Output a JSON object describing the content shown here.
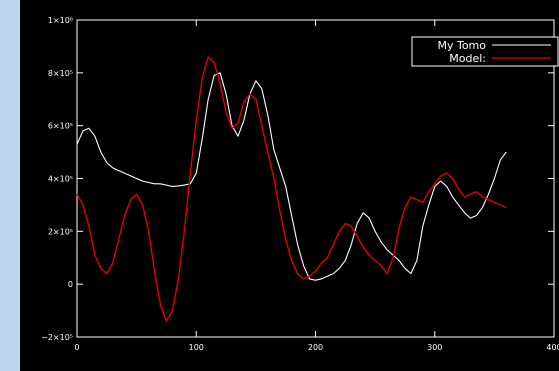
{
  "chart_data": {
    "type": "line",
    "title": "",
    "xlabel": "",
    "ylabel": "",
    "xlim": [
      0,
      400
    ],
    "ylim": [
      -200000,
      1000000
    ],
    "xticks": [
      0,
      100,
      200,
      300,
      400
    ],
    "xtick_labels": [
      "0",
      "100",
      "200",
      "300",
      "400"
    ],
    "yticks": [
      -200000,
      0,
      200000,
      400000,
      600000,
      800000,
      1000000
    ],
    "ytick_labels": [
      "−2×10⁵",
      "0",
      "2×10⁵",
      "4×10⁵",
      "6×10⁵",
      "8×10⁵",
      "1×10⁶"
    ],
    "legend_position": "top-right",
    "series": [
      {
        "name": "My Tomo",
        "color": "#ffffff",
        "x": [
          0,
          5,
          10,
          15,
          20,
          25,
          30,
          35,
          40,
          45,
          50,
          55,
          60,
          65,
          70,
          75,
          80,
          85,
          90,
          95,
          100,
          105,
          110,
          115,
          120,
          125,
          130,
          135,
          140,
          145,
          150,
          155,
          160,
          165,
          170,
          175,
          180,
          185,
          190,
          195,
          200,
          205,
          210,
          215,
          220,
          225,
          230,
          235,
          240,
          245,
          250,
          255,
          260,
          265,
          270,
          275,
          280,
          285,
          290,
          295,
          300,
          305,
          310,
          315,
          320,
          325,
          330,
          335,
          340,
          345,
          350,
          355,
          360
        ],
        "values": [
          530000,
          580000,
          590000,
          560000,
          500000,
          460000,
          440000,
          430000,
          420000,
          410000,
          400000,
          390000,
          385000,
          380000,
          380000,
          375000,
          370000,
          372000,
          375000,
          380000,
          420000,
          550000,
          700000,
          790000,
          800000,
          720000,
          600000,
          560000,
          620000,
          720000,
          770000,
          740000,
          640000,
          510000,
          440000,
          370000,
          260000,
          150000,
          70000,
          20000,
          15000,
          20000,
          30000,
          40000,
          60000,
          90000,
          150000,
          230000,
          270000,
          250000,
          200000,
          160000,
          130000,
          110000,
          90000,
          60000,
          40000,
          90000,
          220000,
          300000,
          370000,
          390000,
          370000,
          330000,
          300000,
          270000,
          250000,
          260000,
          290000,
          340000,
          400000,
          470000,
          500000
        ]
      },
      {
        "name": "Model:",
        "color": "#e00000",
        "x": [
          0,
          5,
          10,
          15,
          20,
          25,
          30,
          35,
          40,
          45,
          50,
          55,
          60,
          65,
          70,
          75,
          80,
          85,
          90,
          95,
          100,
          105,
          110,
          115,
          120,
          125,
          130,
          135,
          140,
          145,
          150,
          155,
          160,
          165,
          170,
          175,
          180,
          185,
          190,
          195,
          200,
          205,
          210,
          215,
          220,
          225,
          230,
          235,
          240,
          245,
          250,
          255,
          260,
          265,
          270,
          275,
          280,
          285,
          290,
          295,
          300,
          305,
          310,
          315,
          320,
          325,
          330,
          335,
          340,
          345,
          350,
          355,
          360
        ],
        "values": [
          340000,
          300000,
          220000,
          110000,
          60000,
          40000,
          80000,
          170000,
          260000,
          320000,
          340000,
          300000,
          200000,
          50000,
          -80000,
          -140000,
          -100000,
          20000,
          200000,
          420000,
          620000,
          780000,
          860000,
          840000,
          760000,
          650000,
          590000,
          610000,
          690000,
          720000,
          700000,
          600000,
          500000,
          400000,
          280000,
          170000,
          90000,
          40000,
          20000,
          30000,
          50000,
          80000,
          100000,
          150000,
          200000,
          230000,
          220000,
          180000,
          140000,
          110000,
          90000,
          70000,
          40000,
          100000,
          210000,
          290000,
          330000,
          320000,
          310000,
          350000,
          380000,
          410000,
          420000,
          400000,
          360000,
          330000,
          340000,
          350000,
          330000,
          320000,
          310000,
          300000,
          290000
        ]
      }
    ]
  }
}
